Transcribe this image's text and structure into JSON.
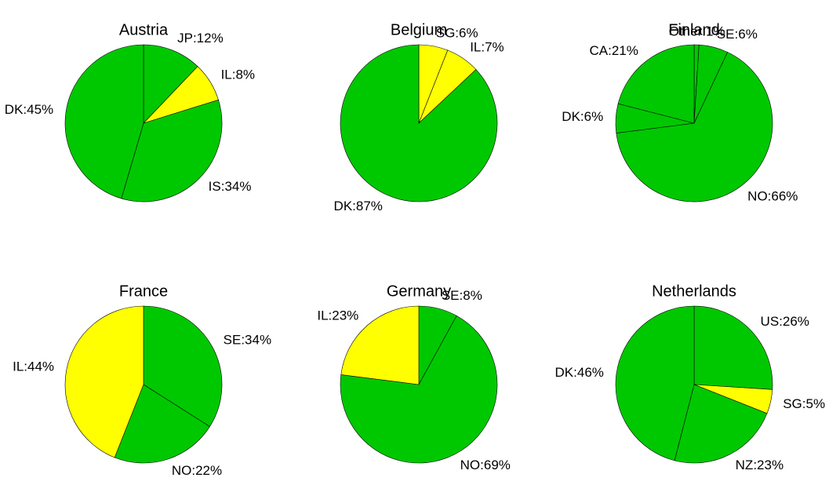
{
  "chart_data": [
    {
      "type": "pie",
      "title": "Austria",
      "values": [
        12,
        8,
        34,
        45
      ],
      "value_labels": [
        "JP:12%",
        "IL:8%",
        "IS:34%",
        "DK:45%"
      ],
      "colors": [
        "#00c800",
        "#ffff00",
        "#00c800",
        "#00c800"
      ]
    },
    {
      "type": "pie",
      "title": "Belgium",
      "values": [
        6,
        7,
        87
      ],
      "value_labels": [
        "SG:6%",
        "IL:7%",
        "DK:87%"
      ],
      "colors": [
        "#ffff00",
        "#ffff00",
        "#00c800"
      ]
    },
    {
      "type": "pie",
      "title": "Finland",
      "values": [
        1,
        6,
        66,
        6,
        21
      ],
      "value_labels": [
        "Other:1%",
        "SE:6%",
        "NO:66%",
        "DK:6%",
        "CA:21%"
      ],
      "colors": [
        "#00c800",
        "#00c800",
        "#00c800",
        "#00c800",
        "#00c800"
      ]
    },
    {
      "type": "pie",
      "title": "France",
      "values": [
        34,
        22,
        44
      ],
      "value_labels": [
        "SE:34%",
        "NO:22%",
        "IL:44%"
      ],
      "colors": [
        "#00c800",
        "#00c800",
        "#ffff00"
      ]
    },
    {
      "type": "pie",
      "title": "Germany",
      "values": [
        8,
        69,
        23
      ],
      "value_labels": [
        "SE:8%",
        "NO:69%",
        "IL:23%"
      ],
      "colors": [
        "#00c800",
        "#00c800",
        "#ffff00"
      ]
    },
    {
      "type": "pie",
      "title": "Netherlands",
      "values": [
        26,
        5,
        23,
        46
      ],
      "value_labels": [
        "US:26%",
        "SG:5%",
        "NZ:23%",
        "DK:46%"
      ],
      "colors": [
        "#00c800",
        "#ffff00",
        "#00c800",
        "#00c800"
      ]
    }
  ]
}
